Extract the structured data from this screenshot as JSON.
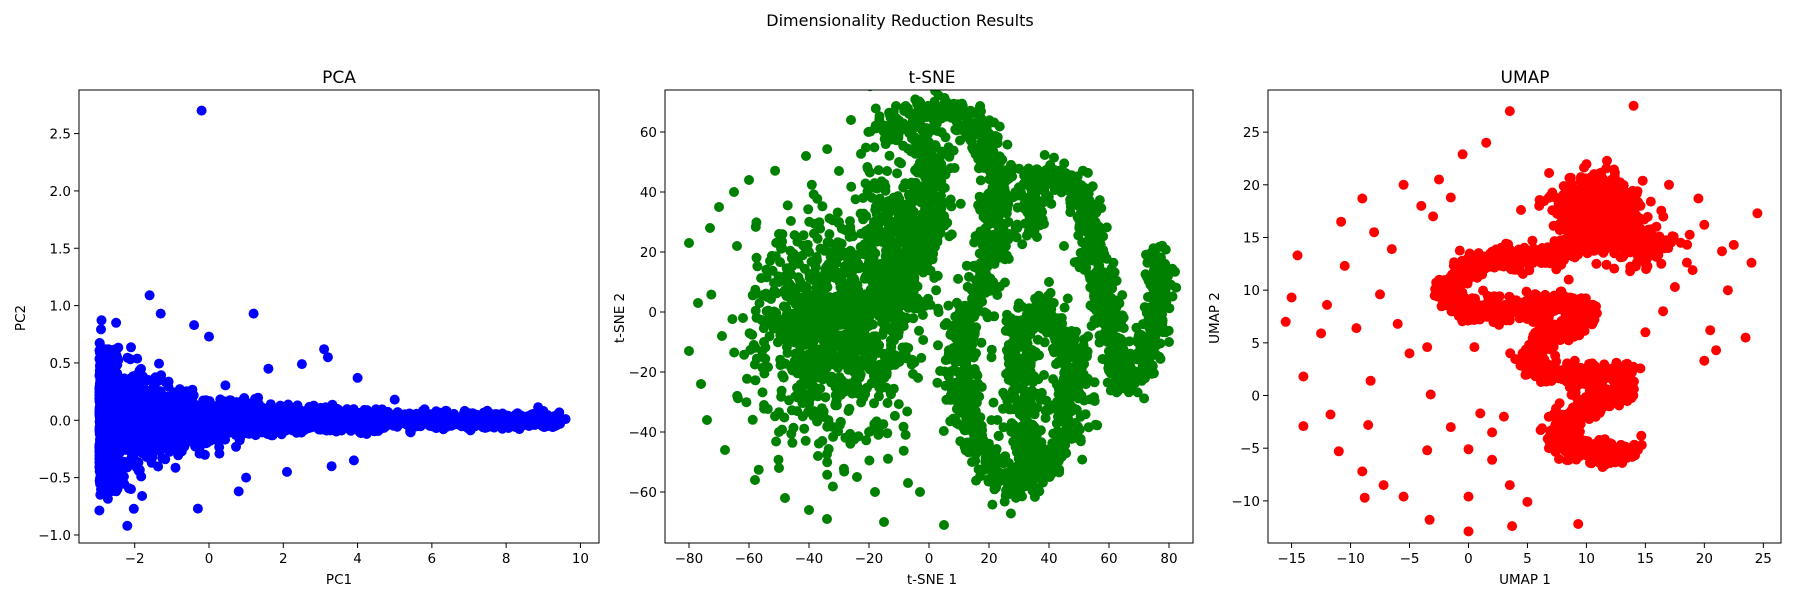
{
  "figure": {
    "title": "Dimensionality Reduction Results"
  },
  "chart_data": [
    {
      "type": "scatter",
      "title": "PCA",
      "xlabel": "PC1",
      "ylabel": "PC2",
      "xlim": [
        -3.5,
        10.5
      ],
      "ylim": [
        -1.07,
        2.88
      ],
      "xticks": [
        -2,
        0,
        2,
        4,
        6,
        8,
        10
      ],
      "yticks": [
        -1.0,
        -0.5,
        0.0,
        0.5,
        1.0,
        1.5,
        2.0,
        2.5
      ],
      "color": "#0000ff",
      "grid": false,
      "series": [
        {
          "description": "dense horizontal wedge: wide spread near x=-2.8, tapering to x=9.6",
          "points": [
            [
              -0.2,
              2.7
            ],
            [
              -2.2,
              -0.92
            ],
            [
              -0.3,
              -0.77
            ],
            [
              0.8,
              -0.62
            ],
            [
              -1.6,
              1.09
            ],
            [
              -1.3,
              0.93
            ],
            [
              1.2,
              0.93
            ],
            [
              -0.4,
              0.83
            ],
            [
              0.0,
              0.73
            ],
            [
              3.1,
              0.62
            ],
            [
              3.2,
              0.55
            ],
            [
              2.5,
              0.49
            ],
            [
              1.6,
              0.45
            ],
            [
              4.0,
              0.37
            ],
            [
              5.0,
              0.18
            ],
            [
              6.4,
              0.08
            ],
            [
              7.8,
              0.05
            ],
            [
              8.3,
              0.04
            ],
            [
              9.0,
              -0.01
            ],
            [
              9.6,
              0.01
            ],
            [
              2.1,
              -0.45
            ],
            [
              3.9,
              -0.35
            ],
            [
              3.3,
              -0.4
            ],
            [
              1.0,
              -0.5
            ],
            [
              -1.8,
              -0.66
            ],
            [
              -2.1,
              -0.6
            ],
            [
              -2.8,
              0.62
            ],
            [
              -2.5,
              0.85
            ],
            [
              -2.9,
              -0.4
            ],
            [
              -2.6,
              -0.5
            ]
          ]
        }
      ]
    },
    {
      "type": "scatter",
      "title": "t-SNE",
      "xlabel": "t-SNE 1",
      "ylabel": "t-SNE 2",
      "xlim": [
        -88,
        88
      ],
      "ylim": [
        -77,
        74
      ],
      "xticks": [
        -80,
        -60,
        -40,
        -20,
        0,
        20,
        40,
        60,
        80
      ],
      "yticks": [
        -60,
        -40,
        -20,
        0,
        20,
        40,
        60
      ],
      "color": "#008000",
      "grid": false,
      "series": [
        {
          "description": "snake-like dense band plus scattered cluster on the left",
          "points": [
            [
              -80,
              23
            ],
            [
              -80,
              -13
            ],
            [
              -77,
              3
            ],
            [
              -76,
              -24
            ],
            [
              -74,
              -36
            ],
            [
              -73,
              28
            ],
            [
              -70,
              35
            ],
            [
              -69,
              -8
            ],
            [
              -68,
              -46
            ],
            [
              -65,
              40
            ],
            [
              -64,
              22
            ],
            [
              -62,
              -2
            ],
            [
              -60,
              44
            ],
            [
              -58,
              -56
            ],
            [
              -55,
              -31
            ],
            [
              -53,
              17
            ],
            [
              -50,
              -52
            ],
            [
              -48,
              -62
            ],
            [
              -45,
              6
            ],
            [
              -41,
              52
            ],
            [
              -40,
              -66
            ],
            [
              -37,
              -48
            ],
            [
              -34,
              -69
            ],
            [
              -30,
              47
            ],
            [
              -26,
              64
            ],
            [
              -24,
              -55
            ],
            [
              -21,
              27
            ],
            [
              -18,
              -60
            ],
            [
              -15,
              -70
            ],
            [
              -10,
              50
            ],
            [
              -7,
              -57
            ],
            [
              -3,
              -60
            ],
            [
              5,
              -71
            ],
            [
              -15,
              60
            ],
            [
              -5,
              66
            ],
            [
              5,
              68
            ],
            [
              15,
              63
            ],
            [
              20,
              55
            ],
            [
              23,
              40
            ],
            [
              22,
              25
            ],
            [
              18,
              10
            ],
            [
              12,
              -5
            ],
            [
              10,
              -20
            ],
            [
              15,
              -40
            ],
            [
              22,
              -55
            ],
            [
              28,
              -60
            ],
            [
              33,
              -50
            ],
            [
              31,
              -30
            ],
            [
              30,
              -10
            ],
            [
              34,
              0
            ],
            [
              40,
              0
            ],
            [
              45,
              -8
            ],
            [
              48,
              -20
            ],
            [
              46,
              -40
            ],
            [
              40,
              -50
            ],
            [
              35,
              -55
            ],
            [
              36,
              45
            ],
            [
              42,
              45
            ],
            [
              48,
              43
            ],
            [
              52,
              35
            ],
            [
              55,
              20
            ],
            [
              58,
              5
            ],
            [
              62,
              -15
            ],
            [
              65,
              -25
            ],
            [
              70,
              -20
            ],
            [
              76,
              0
            ],
            [
              80,
              -10
            ],
            [
              76,
              18
            ],
            [
              73,
              5
            ],
            [
              45,
              22
            ],
            [
              40,
              10
            ],
            [
              36,
              25
            ],
            [
              -2,
              55
            ],
            [
              0,
              40
            ],
            [
              2,
              25
            ],
            [
              -5,
              10
            ],
            [
              -12,
              0
            ],
            [
              -20,
              5
            ],
            [
              -30,
              0
            ],
            [
              -35,
              -10
            ],
            [
              -25,
              -20
            ],
            [
              -45,
              -18
            ],
            [
              -40,
              20
            ],
            [
              -30,
              30
            ],
            [
              -22,
              38
            ],
            [
              -50,
              10
            ],
            [
              -55,
              -10
            ],
            [
              -50,
              -40
            ],
            [
              -35,
              -35
            ],
            [
              -20,
              -40
            ]
          ]
        }
      ]
    },
    {
      "type": "scatter",
      "title": "UMAP",
      "xlabel": "UMAP 1",
      "ylabel": "UMAP 2",
      "xlim": [
        -17,
        26.5
      ],
      "ylim": [
        -14,
        29
      ],
      "xticks": [
        -15,
        -10,
        -5,
        0,
        5,
        10,
        15,
        20,
        25
      ],
      "yticks": [
        -10,
        -5,
        0,
        5,
        10,
        15,
        20,
        25
      ],
      "color": "#ff0000",
      "grid": false,
      "series": [
        {
          "description": "dense S-shaped band from (13.5,-5) up to a dense cluster near (10,18), with scattered outliers",
          "points": [
            [
              13.5,
              -5.2
            ],
            [
              11.0,
              -5.6
            ],
            [
              8.5,
              -5.2
            ],
            [
              7.5,
              -3.5
            ],
            [
              9.0,
              -1.5
            ],
            [
              11.5,
              -0.5
            ],
            [
              13.5,
              0.5
            ],
            [
              13.0,
              2.0
            ],
            [
              10.0,
              2.0
            ],
            [
              6.5,
              2.0
            ],
            [
              5.0,
              3.5
            ],
            [
              6.5,
              5.5
            ],
            [
              9.0,
              6.5
            ],
            [
              10.0,
              8.0
            ],
            [
              7.5,
              9.0
            ],
            [
              3.0,
              8.0
            ],
            [
              0.0,
              8.0
            ],
            [
              -2.0,
              10.0
            ],
            [
              0.5,
              12.5
            ],
            [
              4.0,
              13.0
            ],
            [
              7.0,
              13.0
            ],
            [
              9.5,
              14.5
            ],
            [
              11.5,
              16.0
            ],
            [
              14.0,
              15.5
            ],
            [
              10.0,
              18.0
            ],
            [
              11.0,
              20.0
            ],
            [
              12.0,
              17.5
            ],
            [
              14.5,
              13.5
            ],
            [
              -15.5,
              7.0
            ],
            [
              -15,
              9.3
            ],
            [
              -14.5,
              13.3
            ],
            [
              -14,
              1.8
            ],
            [
              -14,
              -2.9
            ],
            [
              -12.5,
              5.9
            ],
            [
              -12,
              8.6
            ],
            [
              -11.7,
              -1.8
            ],
            [
              -11,
              -5.3
            ],
            [
              -10.8,
              16.5
            ],
            [
              -10.5,
              12.3
            ],
            [
              -9.5,
              6.4
            ],
            [
              -9,
              18.7
            ],
            [
              -9,
              -7.2
            ],
            [
              -8.8,
              -9.7
            ],
            [
              -8.5,
              -2.8
            ],
            [
              -8.3,
              1.4
            ],
            [
              -8,
              15.5
            ],
            [
              -7.5,
              9.6
            ],
            [
              -7.2,
              -8.5
            ],
            [
              -6.5,
              13.9
            ],
            [
              -6,
              6.8
            ],
            [
              -5.5,
              20.0
            ],
            [
              -5.5,
              -9.6
            ],
            [
              -5,
              4.0
            ],
            [
              -4,
              18.0
            ],
            [
              -3.5,
              4.6
            ],
            [
              -3.5,
              -5.2
            ],
            [
              -3.2,
              0.1
            ],
            [
              -3.3,
              -11.8
            ],
            [
              -3,
              17.0
            ],
            [
              -2.5,
              20.5
            ],
            [
              -1.5,
              18.8
            ],
            [
              -1.5,
              -3.0
            ],
            [
              -0.5,
              22.9
            ],
            [
              0,
              -9.6
            ],
            [
              0,
              -12.9
            ],
            [
              0.5,
              4.6
            ],
            [
              0,
              -5.1
            ],
            [
              1,
              -1.7
            ],
            [
              1.5,
              24.0
            ],
            [
              2,
              -3.5
            ],
            [
              2,
              -6.1
            ],
            [
              3,
              -2.0
            ],
            [
              3.5,
              27.0
            ],
            [
              3.5,
              -8.5
            ],
            [
              3.7,
              -12.4
            ],
            [
              5,
              -10.1
            ],
            [
              6,
              18.0
            ],
            [
              8.5,
              11.0
            ],
            [
              9.3,
              -12.2
            ],
            [
              14,
              27.5
            ],
            [
              16,
              15.0
            ],
            [
              17,
              20.0
            ],
            [
              17.5,
              10.3
            ],
            [
              18,
              14.5
            ],
            [
              19,
              11.9
            ],
            [
              19.5,
              18.7
            ],
            [
              20,
              16.2
            ],
            [
              20.5,
              6.2
            ],
            [
              21,
              4.3
            ],
            [
              21.5,
              13.7
            ],
            [
              22,
              10.0
            ],
            [
              23.5,
              5.5
            ],
            [
              24,
              12.6
            ],
            [
              24.5,
              17.3
            ],
            [
              15,
              6.0
            ],
            [
              16.5,
              8.0
            ],
            [
              20,
              3.3
            ],
            [
              22.5,
              14.3
            ]
          ]
        }
      ]
    }
  ]
}
